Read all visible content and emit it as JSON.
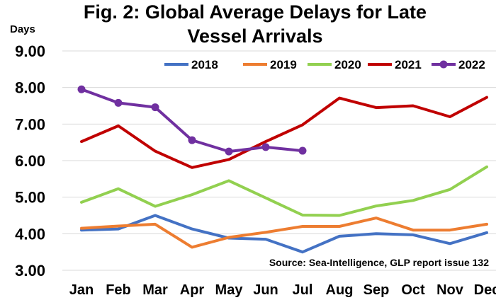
{
  "chart_data": {
    "type": "line",
    "title_lines": [
      "Fig. 2: Global Average Delays for Late",
      "Vessel Arrivals"
    ],
    "ylabel": "Days",
    "ylim": [
      3.0,
      9.0
    ],
    "yticks": [
      "3.00",
      "4.00",
      "5.00",
      "6.00",
      "7.00",
      "8.00",
      "9.00"
    ],
    "categories": [
      "Jan",
      "Feb",
      "Mar",
      "Apr",
      "May",
      "Jun",
      "Jul",
      "Aug",
      "Sep",
      "Oct",
      "Nov",
      "Dec"
    ],
    "grid": true,
    "legend_position": "top",
    "series": [
      {
        "name": "2018",
        "color": "#4472C4",
        "markers": false,
        "values": [
          4.1,
          4.13,
          4.5,
          4.13,
          3.88,
          3.85,
          3.5,
          3.93,
          4.0,
          3.97,
          3.73,
          4.03
        ]
      },
      {
        "name": "2019",
        "color": "#ED7D31",
        "markers": false,
        "values": [
          4.15,
          4.21,
          4.26,
          3.63,
          3.9,
          4.04,
          4.2,
          4.2,
          4.43,
          4.1,
          4.1,
          4.26
        ]
      },
      {
        "name": "2020",
        "color": "#92D050",
        "markers": false,
        "values": [
          4.86,
          5.23,
          4.75,
          5.07,
          5.45,
          4.98,
          4.51,
          4.5,
          4.76,
          4.91,
          5.21,
          5.83
        ]
      },
      {
        "name": "2021",
        "color": "#C00000",
        "markers": false,
        "values": [
          6.52,
          6.95,
          6.26,
          5.81,
          6.03,
          6.52,
          6.98,
          7.71,
          7.45,
          7.5,
          7.2,
          7.73
        ]
      },
      {
        "name": "2022",
        "color": "#7030A0",
        "markers": true,
        "values": [
          7.95,
          7.58,
          7.46,
          6.56,
          6.25,
          6.37,
          6.27,
          null,
          null,
          null,
          null,
          null
        ]
      }
    ],
    "annotation": "Source: Sea-Intelligence, GLP report issue 132"
  }
}
